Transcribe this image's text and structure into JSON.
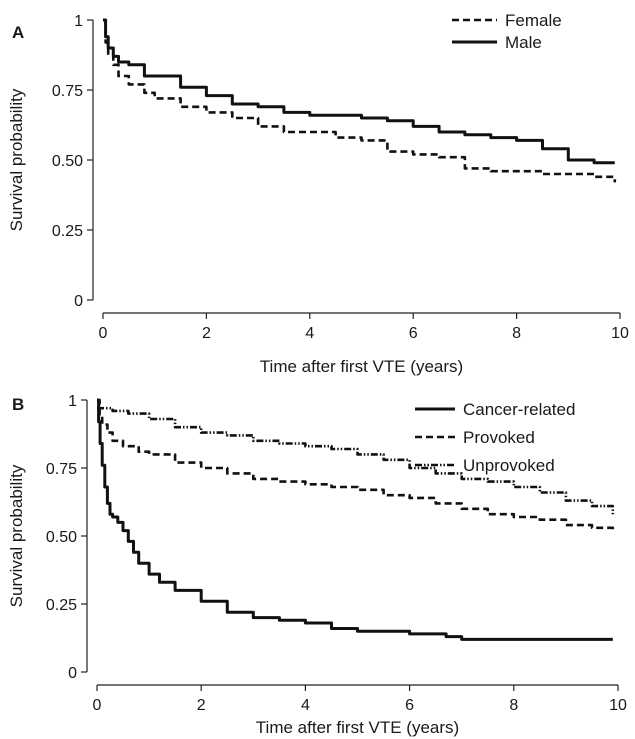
{
  "chart_data": [
    {
      "panel": "A",
      "type": "line",
      "xlabel": "Time after first VTE (years)",
      "ylabel": "Survival probability",
      "xlim": [
        0,
        10
      ],
      "ylim": [
        0,
        1
      ],
      "xticks": [
        "0",
        "2",
        "4",
        "6",
        "8",
        "10"
      ],
      "yticks": [
        "0",
        "0.25",
        "0.50",
        "0.75",
        "1"
      ],
      "legend_position": "top-right",
      "series": [
        {
          "name": "Female",
          "dash": "dashed",
          "x": [
            0,
            0.05,
            0.1,
            0.2,
            0.3,
            0.5,
            0.8,
            1,
            1.5,
            2,
            2.5,
            3,
            3.5,
            4,
            4.5,
            5,
            5.5,
            6,
            6.5,
            7,
            7.5,
            8,
            8.5,
            9,
            9.5,
            9.9
          ],
          "y": [
            1,
            0.92,
            0.88,
            0.84,
            0.8,
            0.77,
            0.74,
            0.72,
            0.69,
            0.67,
            0.65,
            0.62,
            0.6,
            0.6,
            0.58,
            0.57,
            0.53,
            0.52,
            0.51,
            0.47,
            0.46,
            0.46,
            0.45,
            0.45,
            0.44,
            0.42
          ]
        },
        {
          "name": "Male",
          "dash": "solid",
          "x": [
            0,
            0.05,
            0.1,
            0.2,
            0.3,
            0.5,
            0.8,
            1,
            1.5,
            2,
            2.5,
            3,
            3.5,
            4,
            4.5,
            5,
            5.5,
            6,
            6.5,
            7,
            7.5,
            8,
            8.5,
            9,
            9.5,
            9.9
          ],
          "y": [
            1,
            0.94,
            0.9,
            0.87,
            0.85,
            0.84,
            0.8,
            0.8,
            0.76,
            0.73,
            0.7,
            0.69,
            0.67,
            0.66,
            0.66,
            0.65,
            0.64,
            0.62,
            0.6,
            0.59,
            0.58,
            0.57,
            0.54,
            0.5,
            0.49,
            0.49
          ]
        }
      ]
    },
    {
      "panel": "B",
      "type": "line",
      "xlabel": "Time after first VTE (years)",
      "ylabel": "Survival probability",
      "xlim": [
        0,
        10
      ],
      "ylim": [
        0,
        1
      ],
      "xticks": [
        "0",
        "2",
        "4",
        "6",
        "8",
        "10"
      ],
      "yticks": [
        "0",
        "0.25",
        "0.50",
        "0.75",
        "1"
      ],
      "legend_position": "top-right",
      "series": [
        {
          "name": "Cancer-related",
          "dash": "solid",
          "x": [
            0,
            0.03,
            0.06,
            0.1,
            0.15,
            0.2,
            0.25,
            0.3,
            0.4,
            0.5,
            0.6,
            0.7,
            0.8,
            1,
            1.2,
            1.5,
            2,
            2.5,
            3,
            3.5,
            4,
            4.5,
            5,
            6,
            6.7,
            7,
            8,
            9,
            9.9
          ],
          "y": [
            1,
            0.92,
            0.84,
            0.76,
            0.68,
            0.62,
            0.58,
            0.57,
            0.55,
            0.52,
            0.48,
            0.44,
            0.4,
            0.36,
            0.33,
            0.3,
            0.26,
            0.22,
            0.2,
            0.19,
            0.18,
            0.16,
            0.15,
            0.14,
            0.13,
            0.12,
            0.12,
            0.12,
            0.12
          ]
        },
        {
          "name": "Provoked",
          "dash": "dashed",
          "x": [
            0,
            0.05,
            0.1,
            0.2,
            0.3,
            0.5,
            0.8,
            1,
            1.5,
            2,
            2.5,
            3,
            3.5,
            4,
            4.5,
            5,
            5.5,
            6,
            6.5,
            7,
            7.5,
            8,
            8.5,
            9,
            9.5,
            9.9
          ],
          "y": [
            1,
            0.94,
            0.91,
            0.88,
            0.85,
            0.83,
            0.81,
            0.8,
            0.77,
            0.75,
            0.73,
            0.71,
            0.7,
            0.69,
            0.68,
            0.67,
            0.65,
            0.64,
            0.62,
            0.6,
            0.58,
            0.57,
            0.56,
            0.54,
            0.53,
            0.51
          ]
        },
        {
          "name": "Unprovoked",
          "dash": "dash-dot",
          "x": [
            0,
            0.3,
            0.6,
            1,
            1.5,
            2,
            2.5,
            3,
            3.5,
            4,
            4.5,
            5,
            5.5,
            6,
            6.5,
            7,
            7.5,
            8,
            8.5,
            9,
            9.5,
            9.9
          ],
          "y": [
            0.97,
            0.96,
            0.95,
            0.93,
            0.9,
            0.88,
            0.87,
            0.85,
            0.84,
            0.83,
            0.82,
            0.8,
            0.78,
            0.75,
            0.73,
            0.71,
            0.7,
            0.68,
            0.66,
            0.63,
            0.61,
            0.58
          ]
        }
      ]
    }
  ]
}
